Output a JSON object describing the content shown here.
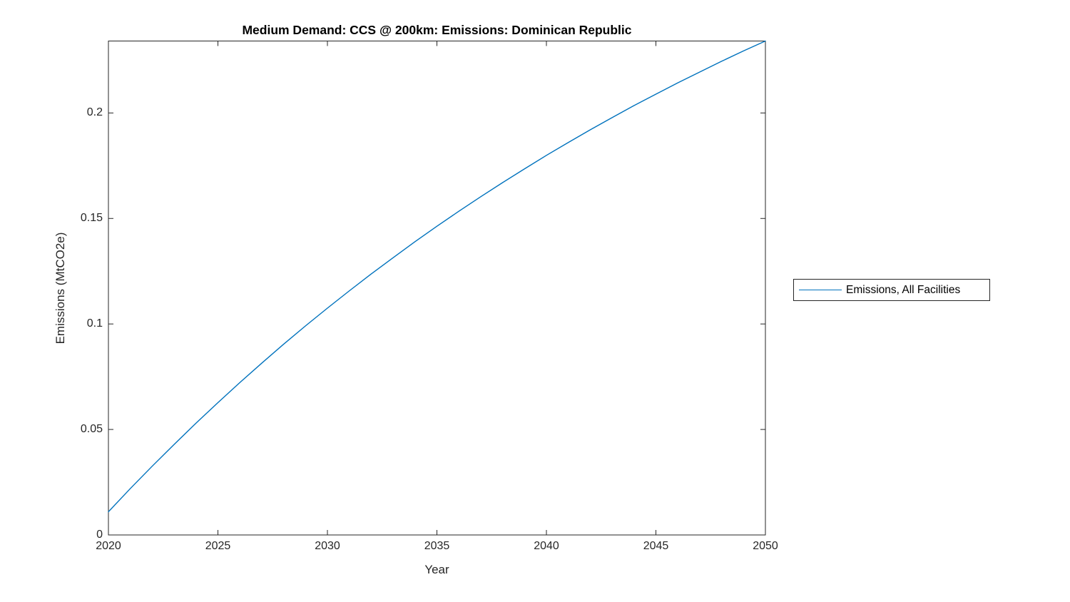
{
  "chart_data": {
    "type": "line",
    "title": "Medium Demand: CCS @ 200km: Emissions: Dominican Republic",
    "xlabel": "Year",
    "ylabel": "Emissions (MtCO2e)",
    "xlim": [
      2020,
      2050
    ],
    "ylim": [
      0,
      0.2341
    ],
    "xticks": [
      2020,
      2025,
      2030,
      2035,
      2040,
      2045,
      2050
    ],
    "xtick_labels": [
      "2020",
      "2025",
      "2030",
      "2035",
      "2040",
      "2045",
      "2050"
    ],
    "yticks": [
      0,
      0.05,
      0.1,
      0.15,
      0.2
    ],
    "ytick_labels": [
      "0",
      "0.05",
      "0.1",
      "0.15",
      "0.2"
    ],
    "grid": false,
    "box": true,
    "tick_direction": "in",
    "axis_color": "#262626",
    "background_color": "#ffffff",
    "legend": {
      "position": "outside-right",
      "entries": [
        "Emissions, All Facilities"
      ]
    },
    "series": [
      {
        "name": "Emissions, All Facilities",
        "color": "#0072BD",
        "x": [
          2020,
          2021,
          2022,
          2023,
          2024,
          2025,
          2026,
          2027,
          2028,
          2029,
          2030,
          2031,
          2032,
          2033,
          2034,
          2035,
          2036,
          2037,
          2038,
          2039,
          2040,
          2041,
          2042,
          2043,
          2044,
          2045,
          2046,
          2047,
          2048,
          2049,
          2050
        ],
        "values": [
          0.011,
          0.022,
          0.0326,
          0.0429,
          0.053,
          0.0627,
          0.0722,
          0.0814,
          0.0904,
          0.0991,
          0.1075,
          0.1157,
          0.1237,
          0.1314,
          0.139,
          0.1463,
          0.1534,
          0.1603,
          0.167,
          0.1735,
          0.1799,
          0.186,
          0.192,
          0.1978,
          0.2035,
          0.2089,
          0.2143,
          0.2194,
          0.2245,
          0.2294,
          0.2341
        ]
      }
    ]
  }
}
